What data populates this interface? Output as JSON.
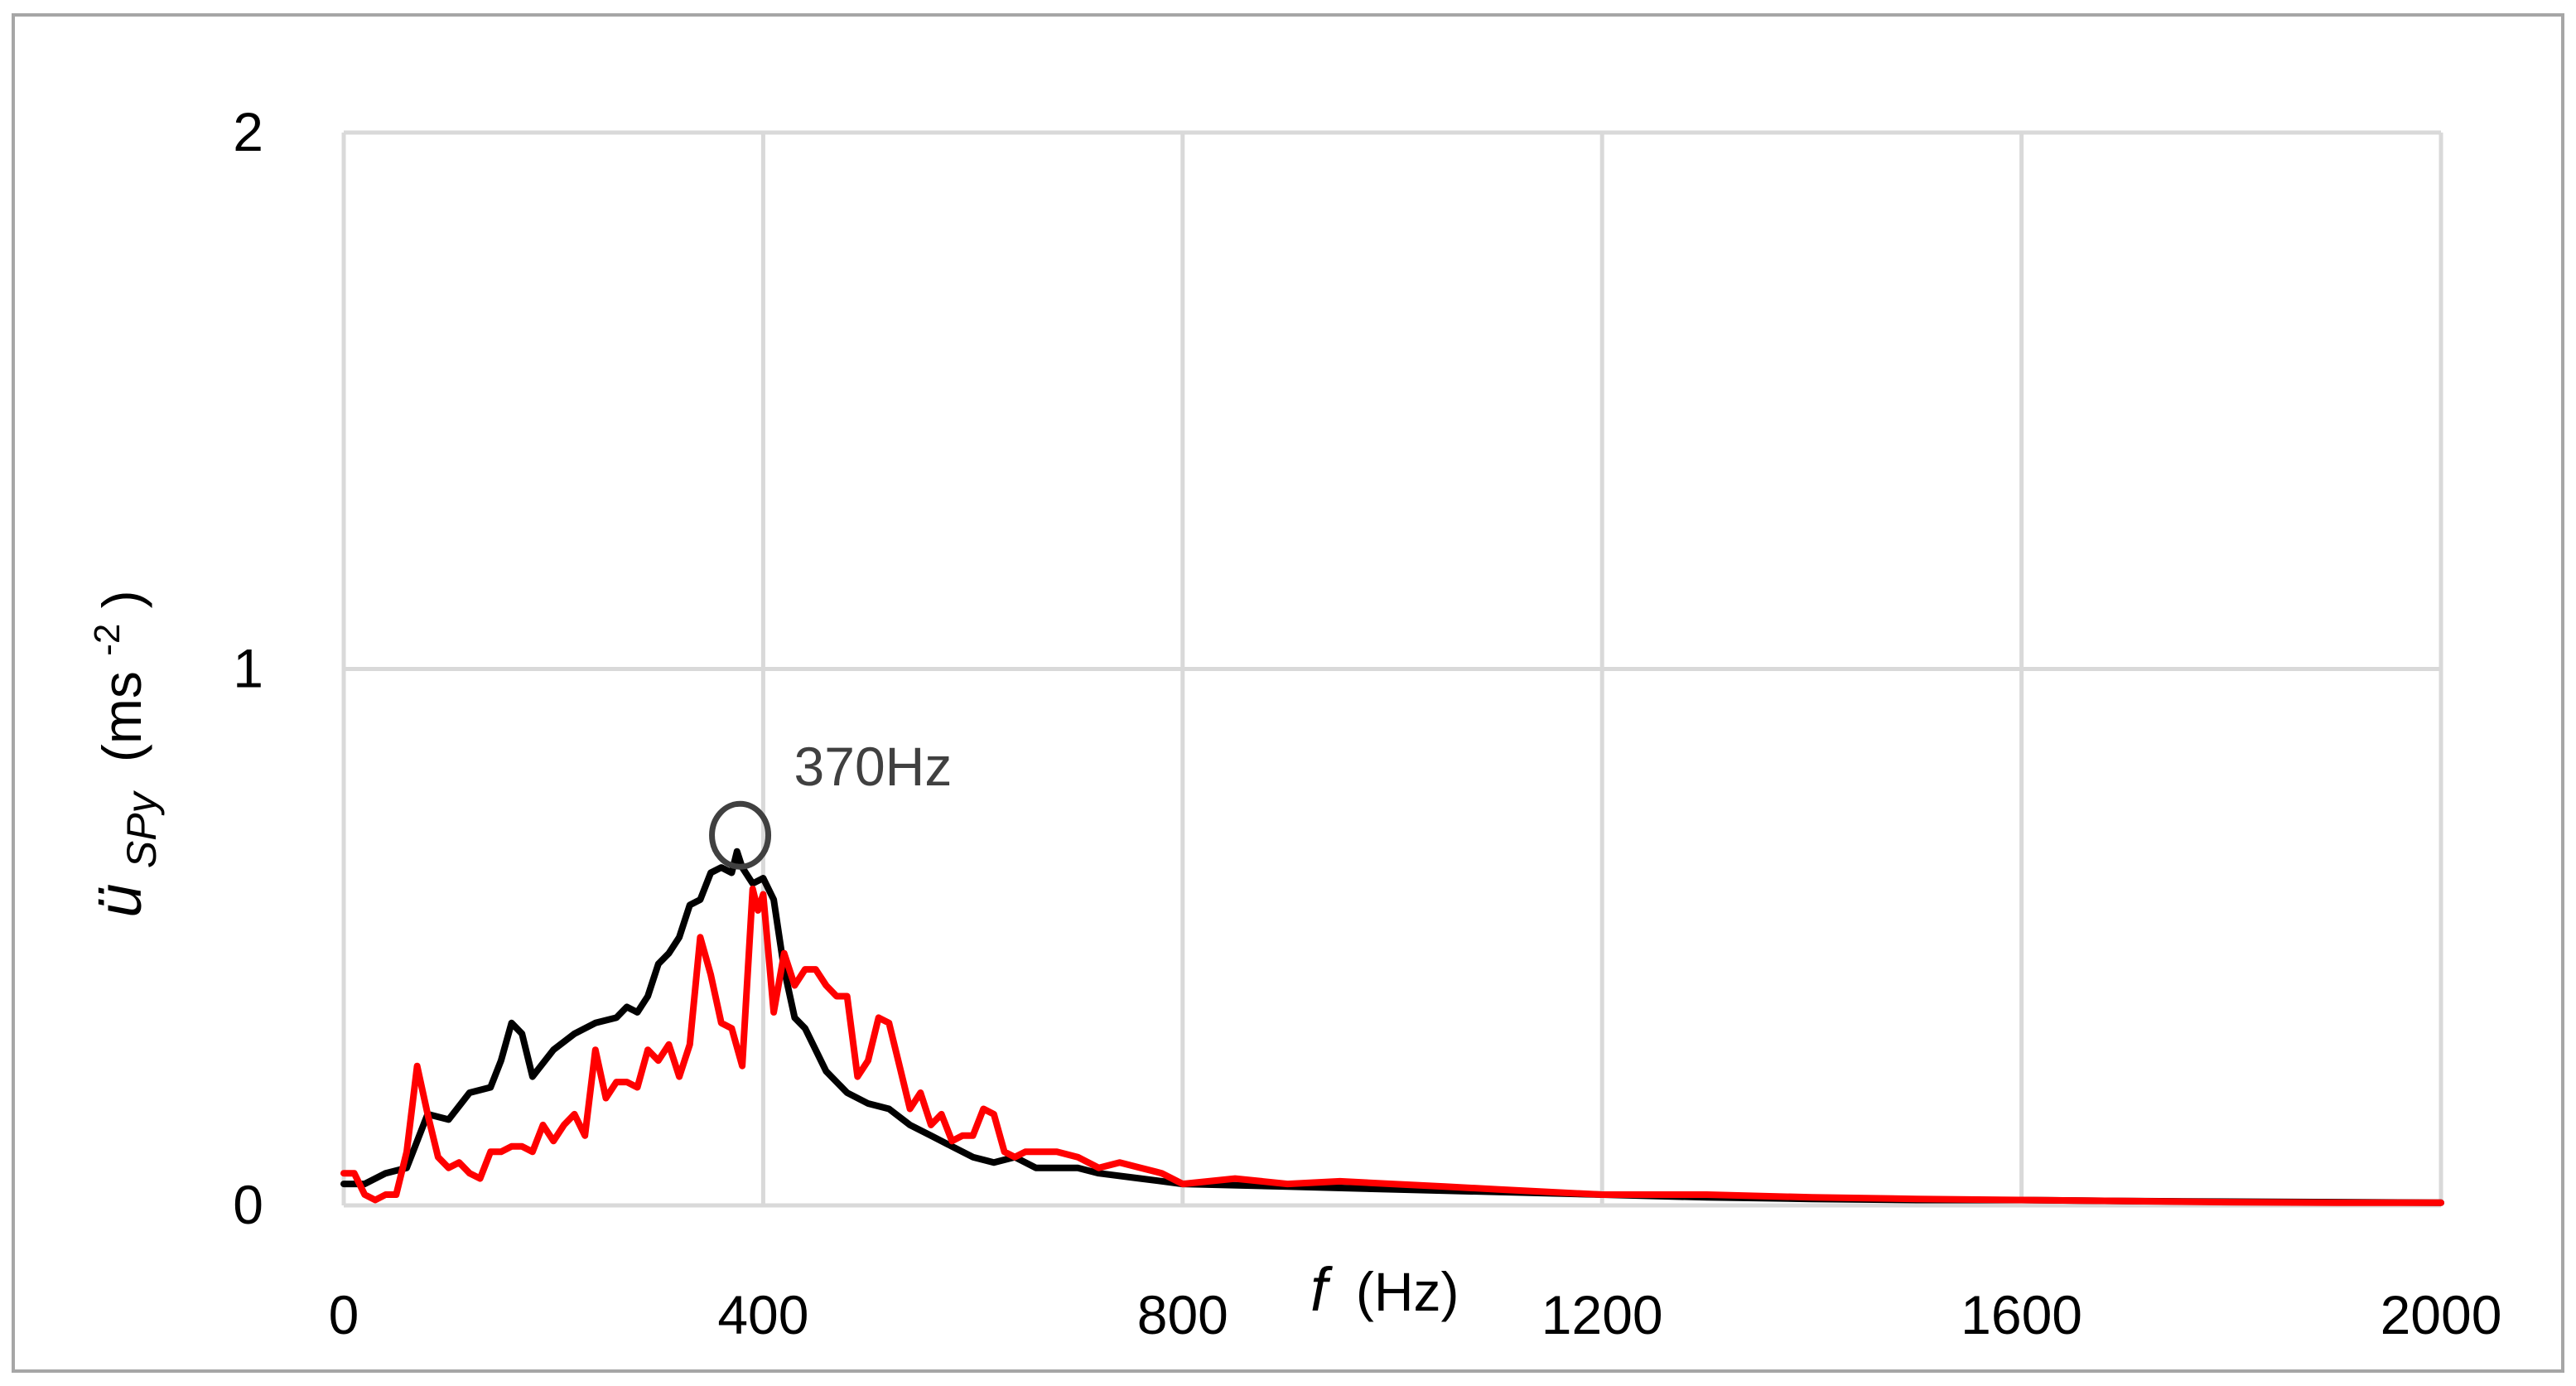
{
  "chart_data": {
    "type": "line",
    "title": "",
    "xlabel": {
      "symbol": "f",
      "unit": "(Hz)"
    },
    "ylabel": {
      "symbol": "ü",
      "subscript": "SPy",
      "unit_pre": "(ms",
      "unit_sup": "-2",
      "unit_post": ")"
    },
    "xlim": [
      0,
      2000
    ],
    "ylim": [
      0,
      2
    ],
    "x_ticks": [
      0,
      400,
      800,
      1200,
      1600,
      2000
    ],
    "y_ticks": [
      0,
      1,
      2
    ],
    "x_tick_labels": [
      "0",
      "400",
      "800",
      "1200",
      "1600",
      "2000"
    ],
    "y_tick_labels": [
      "0",
      "1",
      "2"
    ],
    "grid": true,
    "legend": "none",
    "annotations": [
      {
        "text": "370Hz",
        "marker": "circle",
        "x": 378,
        "y": 0.69
      }
    ],
    "series": [
      {
        "color": "#000000",
        "x": [
          0,
          20,
          40,
          60,
          80,
          100,
          120,
          140,
          150,
          160,
          170,
          180,
          200,
          220,
          240,
          260,
          270,
          280,
          290,
          300,
          310,
          320,
          330,
          340,
          350,
          360,
          370,
          375,
          380,
          390,
          400,
          410,
          420,
          430,
          440,
          460,
          480,
          500,
          520,
          540,
          560,
          580,
          600,
          620,
          640,
          660,
          680,
          700,
          720,
          760,
          800,
          900,
          1000,
          1100,
          1200,
          1300,
          1400,
          1500,
          1600,
          1700,
          1800,
          1900,
          2000
        ],
        "y": [
          0.04,
          0.04,
          0.06,
          0.07,
          0.17,
          0.16,
          0.21,
          0.22,
          0.27,
          0.34,
          0.32,
          0.24,
          0.29,
          0.32,
          0.34,
          0.35,
          0.37,
          0.36,
          0.39,
          0.45,
          0.47,
          0.5,
          0.56,
          0.57,
          0.62,
          0.63,
          0.62,
          0.66,
          0.63,
          0.6,
          0.61,
          0.57,
          0.44,
          0.35,
          0.33,
          0.25,
          0.21,
          0.19,
          0.18,
          0.15,
          0.13,
          0.11,
          0.09,
          0.08,
          0.09,
          0.07,
          0.07,
          0.07,
          0.06,
          0.05,
          0.04,
          0.035,
          0.03,
          0.025,
          0.02,
          0.015,
          0.012,
          0.01,
          0.01,
          0.008,
          0.007,
          0.006,
          0.005
        ]
      },
      {
        "color": "#ff0000",
        "x": [
          0,
          10,
          20,
          30,
          40,
          50,
          60,
          70,
          80,
          90,
          100,
          110,
          120,
          130,
          140,
          150,
          160,
          170,
          180,
          190,
          200,
          210,
          220,
          230,
          240,
          250,
          260,
          270,
          280,
          290,
          300,
          310,
          320,
          330,
          340,
          350,
          360,
          370,
          380,
          390,
          395,
          400,
          410,
          420,
          430,
          440,
          450,
          460,
          470,
          480,
          490,
          500,
          510,
          520,
          530,
          540,
          550,
          560,
          570,
          580,
          590,
          600,
          610,
          620,
          630,
          640,
          650,
          660,
          680,
          700,
          720,
          740,
          760,
          780,
          800,
          850,
          900,
          950,
          1000,
          1050,
          1100,
          1200,
          1300,
          1400,
          1500,
          1600,
          1700,
          1800,
          1900,
          2000
        ],
        "y": [
          0.06,
          0.06,
          0.02,
          0.01,
          0.02,
          0.02,
          0.1,
          0.26,
          0.17,
          0.09,
          0.07,
          0.08,
          0.06,
          0.05,
          0.1,
          0.1,
          0.11,
          0.11,
          0.1,
          0.15,
          0.12,
          0.15,
          0.17,
          0.13,
          0.29,
          0.2,
          0.23,
          0.23,
          0.22,
          0.29,
          0.27,
          0.3,
          0.24,
          0.3,
          0.5,
          0.43,
          0.34,
          0.33,
          0.26,
          0.59,
          0.55,
          0.58,
          0.36,
          0.47,
          0.41,
          0.44,
          0.44,
          0.41,
          0.39,
          0.39,
          0.24,
          0.27,
          0.35,
          0.34,
          0.26,
          0.18,
          0.21,
          0.15,
          0.17,
          0.12,
          0.13,
          0.13,
          0.18,
          0.17,
          0.1,
          0.09,
          0.1,
          0.1,
          0.1,
          0.09,
          0.07,
          0.08,
          0.07,
          0.06,
          0.04,
          0.05,
          0.04,
          0.045,
          0.04,
          0.035,
          0.03,
          0.02,
          0.02,
          0.015,
          0.012,
          0.01,
          0.008,
          0.006,
          0.005,
          0.005
        ]
      }
    ]
  }
}
